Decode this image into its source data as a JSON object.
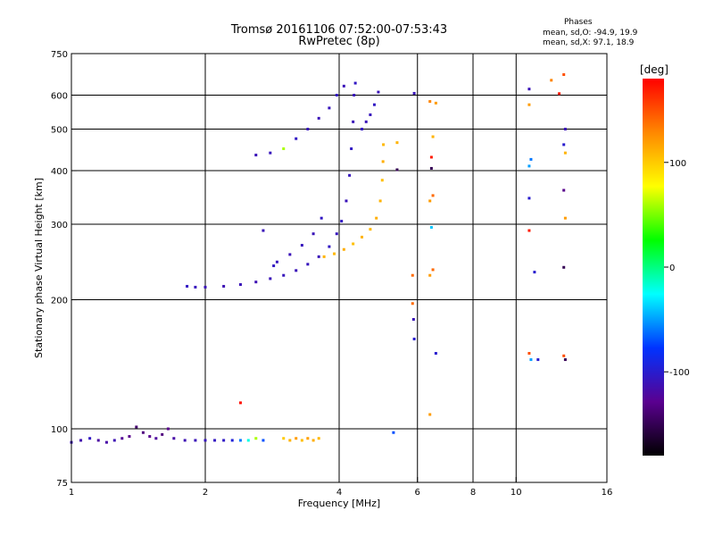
{
  "title_line1": "Tromsø 20161106 07:52:00-07:53:43",
  "title_line2": "RwPretec (8p)",
  "stats": {
    "header": "Phases",
    "line_o": "mean, sd,O: -94.9, 19.9",
    "line_x": "mean, sd,X:  97.1, 18.9"
  },
  "chart_data": {
    "type": "scatter",
    "xlabel": "Frequency [MHz]",
    "ylabel": "Stationary phase Virtual Height [km]",
    "x_scale": "log",
    "y_scale": "log",
    "xlim": [
      1,
      16
    ],
    "ylim": [
      75,
      750
    ],
    "x_ticks": [
      1,
      2,
      4,
      6,
      8,
      10,
      16
    ],
    "y_ticks": [
      75,
      100,
      200,
      300,
      400,
      500,
      600,
      750
    ],
    "x_gridlines": [
      2,
      4,
      6,
      8,
      10
    ],
    "y_gridlines": [
      100,
      200,
      300,
      400,
      500,
      600
    ],
    "grid": true,
    "colorbar": {
      "label": "[deg]",
      "range": [
        -180,
        180
      ],
      "ticks": [
        100,
        0,
        -100
      ],
      "colors": [
        "#000000",
        "#5a0090",
        "#0033ff",
        "#00ffff",
        "#00ff00",
        "#ffff00",
        "#ff8800",
        "#ff0000"
      ]
    },
    "series": [
      {
        "name": "",
        "color_scale": "phase",
        "points": [
          {
            "x": 1.0,
            "y": 93,
            "phase": -110
          },
          {
            "x": 1.05,
            "y": 94,
            "phase": -115
          },
          {
            "x": 1.1,
            "y": 95,
            "phase": -105
          },
          {
            "x": 1.15,
            "y": 94,
            "phase": -120
          },
          {
            "x": 1.2,
            "y": 93,
            "phase": -118
          },
          {
            "x": 1.25,
            "y": 94,
            "phase": -112
          },
          {
            "x": 1.3,
            "y": 95,
            "phase": -125
          },
          {
            "x": 1.35,
            "y": 96,
            "phase": -130
          },
          {
            "x": 1.4,
            "y": 101,
            "phase": -140
          },
          {
            "x": 1.45,
            "y": 98,
            "phase": -135
          },
          {
            "x": 1.5,
            "y": 96,
            "phase": -128
          },
          {
            "x": 1.55,
            "y": 95,
            "phase": -122
          },
          {
            "x": 1.6,
            "y": 97,
            "phase": -135
          },
          {
            "x": 1.65,
            "y": 100,
            "phase": -130
          },
          {
            "x": 1.7,
            "y": 95,
            "phase": -118
          },
          {
            "x": 1.8,
            "y": 94,
            "phase": -112
          },
          {
            "x": 1.9,
            "y": 94,
            "phase": -110
          },
          {
            "x": 2.0,
            "y": 94,
            "phase": -108
          },
          {
            "x": 2.1,
            "y": 94,
            "phase": -106
          },
          {
            "x": 2.2,
            "y": 94,
            "phase": -104
          },
          {
            "x": 2.3,
            "y": 94,
            "phase": -95
          },
          {
            "x": 2.4,
            "y": 94,
            "phase": -60
          },
          {
            "x": 2.5,
            "y": 94,
            "phase": -20
          },
          {
            "x": 2.6,
            "y": 95,
            "phase": 60
          },
          {
            "x": 2.7,
            "y": 94,
            "phase": -70
          },
          {
            "x": 3.0,
            "y": 95,
            "phase": 100
          },
          {
            "x": 3.1,
            "y": 94,
            "phase": 110
          },
          {
            "x": 3.2,
            "y": 95,
            "phase": 120
          },
          {
            "x": 3.3,
            "y": 94,
            "phase": 105
          },
          {
            "x": 3.4,
            "y": 95,
            "phase": 118
          },
          {
            "x": 3.5,
            "y": 94,
            "phase": 112
          },
          {
            "x": 3.6,
            "y": 95,
            "phase": 108
          },
          {
            "x": 2.4,
            "y": 115,
            "phase": 175
          },
          {
            "x": 1.82,
            "y": 215,
            "phase": -105
          },
          {
            "x": 1.9,
            "y": 214,
            "phase": -108
          },
          {
            "x": 2.0,
            "y": 214,
            "phase": -110
          },
          {
            "x": 2.2,
            "y": 215,
            "phase": -112
          },
          {
            "x": 2.4,
            "y": 217,
            "phase": -110
          },
          {
            "x": 2.6,
            "y": 220,
            "phase": -112
          },
          {
            "x": 2.8,
            "y": 224,
            "phase": -110
          },
          {
            "x": 3.0,
            "y": 228,
            "phase": -108
          },
          {
            "x": 3.2,
            "y": 234,
            "phase": -110
          },
          {
            "x": 3.4,
            "y": 242,
            "phase": -108
          },
          {
            "x": 3.6,
            "y": 252,
            "phase": -110
          },
          {
            "x": 3.8,
            "y": 266,
            "phase": -105
          },
          {
            "x": 3.95,
            "y": 285,
            "phase": -108
          },
          {
            "x": 4.05,
            "y": 305,
            "phase": -105
          },
          {
            "x": 4.15,
            "y": 340,
            "phase": -110
          },
          {
            "x": 4.22,
            "y": 390,
            "phase": -108
          },
          {
            "x": 4.26,
            "y": 450,
            "phase": -105
          },
          {
            "x": 4.3,
            "y": 520,
            "phase": -110
          },
          {
            "x": 4.32,
            "y": 600,
            "phase": -108
          },
          {
            "x": 4.35,
            "y": 640,
            "phase": -105
          },
          {
            "x": 2.6,
            "y": 435,
            "phase": -110
          },
          {
            "x": 2.8,
            "y": 440,
            "phase": -108
          },
          {
            "x": 3.0,
            "y": 450,
            "phase": 60
          },
          {
            "x": 3.2,
            "y": 475,
            "phase": -105
          },
          {
            "x": 3.4,
            "y": 500,
            "phase": -108
          },
          {
            "x": 3.6,
            "y": 530,
            "phase": -110
          },
          {
            "x": 3.8,
            "y": 560,
            "phase": -108
          },
          {
            "x": 3.95,
            "y": 600,
            "phase": -105
          },
          {
            "x": 4.1,
            "y": 630,
            "phase": -110
          },
          {
            "x": 2.7,
            "y": 290,
            "phase": -110
          },
          {
            "x": 2.85,
            "y": 240,
            "phase": -105
          },
          {
            "x": 2.9,
            "y": 245,
            "phase": -108
          },
          {
            "x": 3.1,
            "y": 255,
            "phase": -110
          },
          {
            "x": 3.3,
            "y": 268,
            "phase": -108
          },
          {
            "x": 3.5,
            "y": 285,
            "phase": -110
          },
          {
            "x": 3.65,
            "y": 310,
            "phase": -105
          },
          {
            "x": 3.7,
            "y": 252,
            "phase": 110
          },
          {
            "x": 3.9,
            "y": 256,
            "phase": 108
          },
          {
            "x": 4.1,
            "y": 262,
            "phase": 112
          },
          {
            "x": 4.3,
            "y": 270,
            "phase": 105
          },
          {
            "x": 4.5,
            "y": 280,
            "phase": 110
          },
          {
            "x": 4.7,
            "y": 292,
            "phase": 108
          },
          {
            "x": 4.85,
            "y": 310,
            "phase": 112
          },
          {
            "x": 4.95,
            "y": 340,
            "phase": 110
          },
          {
            "x": 5.0,
            "y": 380,
            "phase": 105
          },
          {
            "x": 5.02,
            "y": 420,
            "phase": 112
          },
          {
            "x": 5.03,
            "y": 460,
            "phase": 108
          },
          {
            "x": 4.5,
            "y": 500,
            "phase": -105
          },
          {
            "x": 4.6,
            "y": 520,
            "phase": -110
          },
          {
            "x": 4.7,
            "y": 540,
            "phase": -108
          },
          {
            "x": 4.8,
            "y": 570,
            "phase": -105
          },
          {
            "x": 4.9,
            "y": 610,
            "phase": -110
          },
          {
            "x": 5.4,
            "y": 465,
            "phase": 110
          },
          {
            "x": 5.4,
            "y": 402,
            "phase": -150
          },
          {
            "x": 5.9,
            "y": 606,
            "phase": -110
          },
          {
            "x": 5.85,
            "y": 228,
            "phase": 140
          },
          {
            "x": 5.88,
            "y": 180,
            "phase": -110
          },
          {
            "x": 5.9,
            "y": 162,
            "phase": -100
          },
          {
            "x": 5.85,
            "y": 196,
            "phase": 140
          },
          {
            "x": 5.3,
            "y": 98,
            "phase": -70
          },
          {
            "x": 6.4,
            "y": 580,
            "phase": 130
          },
          {
            "x": 6.6,
            "y": 575,
            "phase": 120
          },
          {
            "x": 6.5,
            "y": 480,
            "phase": 110
          },
          {
            "x": 6.45,
            "y": 430,
            "phase": 170
          },
          {
            "x": 6.45,
            "y": 405,
            "phase": -150
          },
          {
            "x": 6.5,
            "y": 350,
            "phase": 140
          },
          {
            "x": 6.4,
            "y": 340,
            "phase": 120
          },
          {
            "x": 6.45,
            "y": 295,
            "phase": -40
          },
          {
            "x": 6.5,
            "y": 235,
            "phase": 140
          },
          {
            "x": 6.4,
            "y": 228,
            "phase": 120
          },
          {
            "x": 6.6,
            "y": 150,
            "phase": -100
          },
          {
            "x": 6.4,
            "y": 108,
            "phase": 120
          },
          {
            "x": 10.7,
            "y": 620,
            "phase": -110
          },
          {
            "x": 10.7,
            "y": 570,
            "phase": 120
          },
          {
            "x": 10.8,
            "y": 425,
            "phase": -60
          },
          {
            "x": 10.7,
            "y": 410,
            "phase": -50
          },
          {
            "x": 10.7,
            "y": 345,
            "phase": -100
          },
          {
            "x": 10.7,
            "y": 290,
            "phase": 170
          },
          {
            "x": 11.0,
            "y": 232,
            "phase": -100
          },
          {
            "x": 10.7,
            "y": 150,
            "phase": 150
          },
          {
            "x": 10.8,
            "y": 145,
            "phase": -50
          },
          {
            "x": 11.2,
            "y": 145,
            "phase": -100
          },
          {
            "x": 12.0,
            "y": 650,
            "phase": 130
          },
          {
            "x": 12.8,
            "y": 670,
            "phase": 150
          },
          {
            "x": 12.5,
            "y": 605,
            "phase": 170
          },
          {
            "x": 12.9,
            "y": 500,
            "phase": -110
          },
          {
            "x": 12.8,
            "y": 460,
            "phase": -100
          },
          {
            "x": 12.9,
            "y": 440,
            "phase": 110
          },
          {
            "x": 12.8,
            "y": 360,
            "phase": -130
          },
          {
            "x": 12.9,
            "y": 310,
            "phase": 120
          },
          {
            "x": 12.8,
            "y": 238,
            "phase": -150
          },
          {
            "x": 12.9,
            "y": 145,
            "phase": -150
          },
          {
            "x": 12.8,
            "y": 148,
            "phase": 150
          }
        ]
      }
    ]
  }
}
